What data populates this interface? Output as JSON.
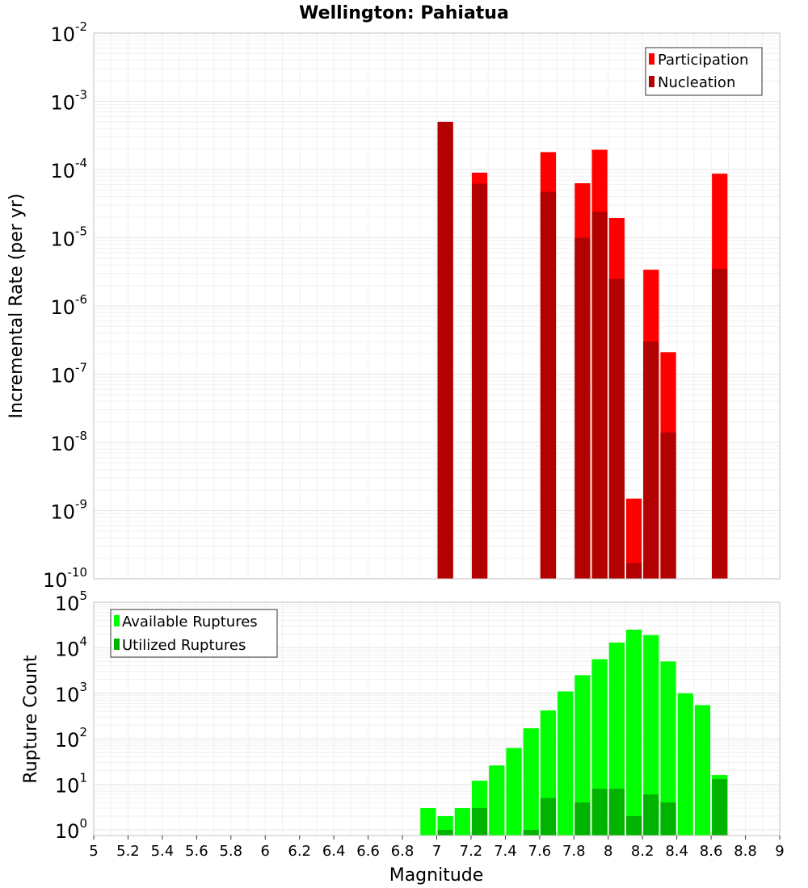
{
  "chart_data": [
    {
      "type": "bar",
      "title": "Wellington: Pahiatua",
      "xlabel": "",
      "ylabel": "Incremental Rate (per yr)",
      "yscale": "log",
      "ylim": [
        1e-10,
        0.01
      ],
      "xlim": [
        5,
        9
      ],
      "y_tick_base": "10",
      "y_tick_exponents": [
        "-10",
        "-9",
        "-8",
        "-7",
        "-6",
        "-5",
        "-4",
        "-3",
        "-2"
      ],
      "grid": true,
      "legend_position": "top-right",
      "bar_width": 0.1,
      "colors": {
        "participation": "#ff0000",
        "nucleation": "#b30000"
      },
      "series": [
        {
          "name": "Participation",
          "x": [
            7.05,
            7.25,
            7.65,
            7.85,
            7.95,
            8.05,
            8.15,
            8.25,
            8.35,
            8.65
          ],
          "values": [
            0.0005,
            9e-05,
            0.00018,
            6.3e-05,
            0.000195,
            1.95e-05,
            1.5e-09,
            3.4e-06,
            2.1e-07,
            8.7e-05
          ]
        },
        {
          "name": "Nucleation",
          "x": [
            7.05,
            7.25,
            7.65,
            7.85,
            7.95,
            8.05,
            8.15,
            8.25,
            8.35,
            8.65
          ],
          "values": [
            0.0005,
            6.2e-05,
            4.7e-05,
            1e-05,
            2.4e-05,
            2.5e-06,
            1.7e-10,
            3e-07,
            1.4e-08,
            3.5e-06
          ]
        }
      ]
    },
    {
      "type": "bar",
      "title": "",
      "xlabel": "Magnitude",
      "ylabel": "Rupture Count",
      "yscale": "log",
      "ylim": [
        0.75,
        100000.0
      ],
      "xlim": [
        5,
        9
      ],
      "x_ticks": [
        "5",
        "5.2",
        "5.4",
        "5.6",
        "5.8",
        "6",
        "6.2",
        "6.4",
        "6.6",
        "6.8",
        "7",
        "7.2",
        "7.4",
        "7.6",
        "7.8",
        "8",
        "8.2",
        "8.4",
        "8.6",
        "8.8",
        "9"
      ],
      "y_tick_base": "10",
      "y_tick_exponents": [
        "0",
        "1",
        "2",
        "3",
        "4",
        "5"
      ],
      "grid": true,
      "legend_position": "top-left",
      "bar_width": 0.1,
      "colors": {
        "available": "#00ff00",
        "utilized": "#00b300"
      },
      "series": [
        {
          "name": "Available Ruptures",
          "x": [
            6.95,
            7.05,
            7.15,
            7.25,
            7.35,
            7.45,
            7.55,
            7.65,
            7.75,
            7.85,
            7.95,
            8.05,
            8.15,
            8.25,
            8.35,
            8.45,
            8.55,
            8.65
          ],
          "values": [
            3,
            2,
            3,
            12,
            26,
            63,
            170,
            420,
            1100,
            2500,
            5600,
            13000,
            25000,
            19000,
            5000,
            1000,
            550,
            16
          ]
        },
        {
          "name": "Utilized Ruptures",
          "x": [
            7.05,
            7.25,
            7.55,
            7.65,
            7.85,
            7.95,
            8.05,
            8.15,
            8.25,
            8.35,
            8.65
          ],
          "values": [
            1,
            3,
            1,
            5,
            4,
            8,
            8,
            2,
            6,
            4,
            13
          ]
        }
      ]
    }
  ]
}
